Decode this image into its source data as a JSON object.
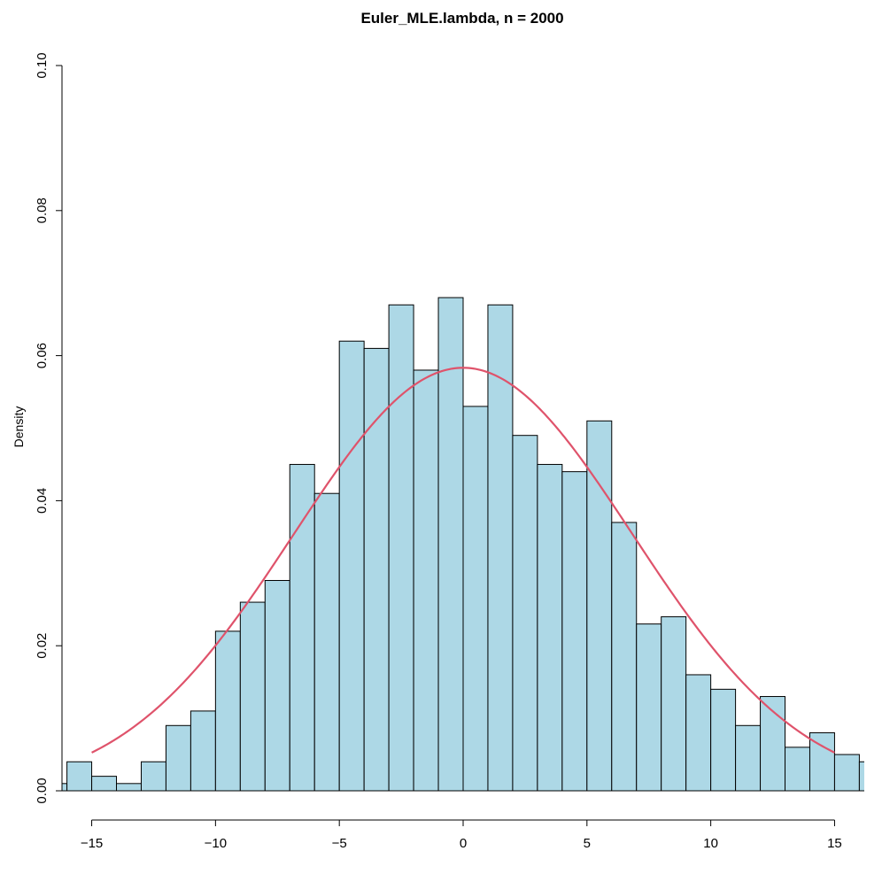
{
  "chart_data": {
    "type": "bar",
    "title": "Euler_MLE.lambda, n = 2000",
    "xlabel": "",
    "ylabel": "Density",
    "xlim": [
      -16.2,
      16.2
    ],
    "ylim": [
      0,
      0.1
    ],
    "x_ticks": [
      -15,
      -10,
      -5,
      0,
      5,
      10,
      15
    ],
    "x_tick_labels": [
      "−15",
      "−10",
      "−5",
      "0",
      "5",
      "10",
      "15"
    ],
    "y_ticks": [
      0,
      0.02,
      0.04,
      0.06,
      0.08,
      0.1
    ],
    "y_tick_labels": [
      "0.00",
      "0.02",
      "0.04",
      "0.06",
      "0.08",
      "0.10"
    ],
    "bin_width": 1,
    "bins": [
      {
        "x0": -17,
        "x1": -16,
        "density": 0.001
      },
      {
        "x0": -16,
        "x1": -15,
        "density": 0.004
      },
      {
        "x0": -15,
        "x1": -14,
        "density": 0.002
      },
      {
        "x0": -14,
        "x1": -13,
        "density": 0.001
      },
      {
        "x0": -13,
        "x1": -12,
        "density": 0.004
      },
      {
        "x0": -12,
        "x1": -11,
        "density": 0.009
      },
      {
        "x0": -11,
        "x1": -10,
        "density": 0.011
      },
      {
        "x0": -10,
        "x1": -9,
        "density": 0.022
      },
      {
        "x0": -9,
        "x1": -8,
        "density": 0.026
      },
      {
        "x0": -8,
        "x1": -7,
        "density": 0.029
      },
      {
        "x0": -7,
        "x1": -6,
        "density": 0.045
      },
      {
        "x0": -6,
        "x1": -5,
        "density": 0.041
      },
      {
        "x0": -5,
        "x1": -4,
        "density": 0.062
      },
      {
        "x0": -4,
        "x1": -3,
        "density": 0.061
      },
      {
        "x0": -3,
        "x1": -2,
        "density": 0.067
      },
      {
        "x0": -2,
        "x1": -1,
        "density": 0.058
      },
      {
        "x0": -1,
        "x1": 0,
        "density": 0.068
      },
      {
        "x0": 0,
        "x1": 1,
        "density": 0.053
      },
      {
        "x0": 1,
        "x1": 2,
        "density": 0.067
      },
      {
        "x0": 2,
        "x1": 3,
        "density": 0.049
      },
      {
        "x0": 3,
        "x1": 4,
        "density": 0.045
      },
      {
        "x0": 4,
        "x1": 5,
        "density": 0.044
      },
      {
        "x0": 5,
        "x1": 6,
        "density": 0.051
      },
      {
        "x0": 6,
        "x1": 7,
        "density": 0.037
      },
      {
        "x0": 7,
        "x1": 8,
        "density": 0.023
      },
      {
        "x0": 8,
        "x1": 9,
        "density": 0.024
      },
      {
        "x0": 9,
        "x1": 10,
        "density": 0.016
      },
      {
        "x0": 10,
        "x1": 11,
        "density": 0.014
      },
      {
        "x0": 11,
        "x1": 12,
        "density": 0.009
      },
      {
        "x0": 12,
        "x1": 13,
        "density": 0.013
      },
      {
        "x0": 13,
        "x1": 14,
        "density": 0.006
      },
      {
        "x0": 14,
        "x1": 15,
        "density": 0.008
      },
      {
        "x0": 15,
        "x1": 16,
        "density": 0.005
      },
      {
        "x0": 16,
        "x1": 17,
        "density": 0.004
      }
    ],
    "density_curve": {
      "type": "normal",
      "mean": 0,
      "sd": 6.84,
      "x_range": [
        -15,
        15
      ]
    },
    "colors": {
      "bar_fill": "#add8e6",
      "bar_stroke": "#000000",
      "curve": "#df536b"
    },
    "grid": false,
    "legend": "none"
  }
}
